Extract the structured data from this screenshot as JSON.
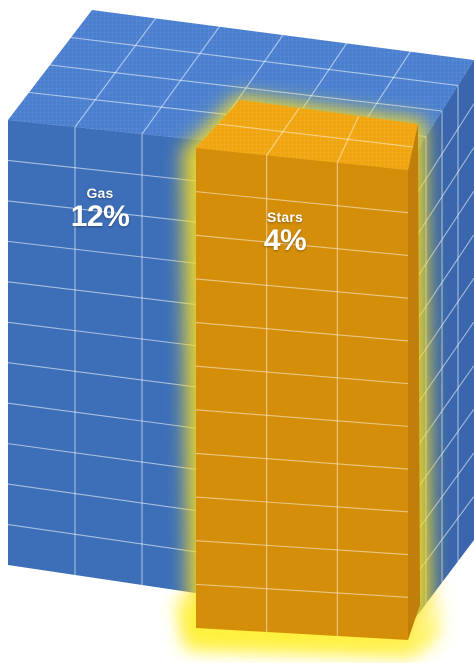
{
  "colors": {
    "gas_top": "#4a7fcf",
    "gas_front": "#3d6fb9",
    "gas_side": "#3966ac",
    "stars_top": "#f0a50f",
    "stars_front": "#d58e09",
    "stars_side": "#c07e0a",
    "glow": "#ffe11a",
    "grid_line": "#ffffff"
  },
  "labels": {
    "gas": {
      "name": "Gas",
      "value": "12%"
    },
    "stars": {
      "name": "Stars",
      "value": "4%"
    }
  }
}
